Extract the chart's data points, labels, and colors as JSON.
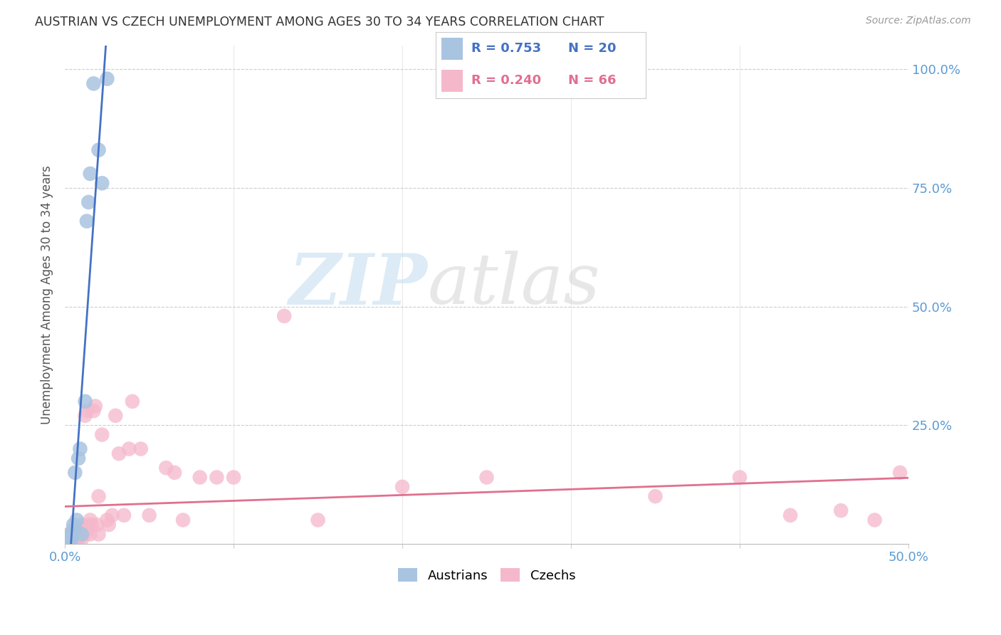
{
  "title": "AUSTRIAN VS CZECH UNEMPLOYMENT AMONG AGES 30 TO 34 YEARS CORRELATION CHART",
  "source": "Source: ZipAtlas.com",
  "ylabel": "Unemployment Among Ages 30 to 34 years",
  "xlim": [
    0.0,
    0.5
  ],
  "ylim": [
    0.0,
    1.05
  ],
  "yticks": [
    0.0,
    0.25,
    0.5,
    0.75,
    1.0
  ],
  "ytick_labels": [
    "",
    "25.0%",
    "50.0%",
    "75.0%",
    "100.0%"
  ],
  "xtick_labels": [
    "0.0%",
    "",
    "",
    "",
    "",
    "50.0%"
  ],
  "watermark_zip": "ZIP",
  "watermark_atlas": "atlas",
  "legend_blue_r": "R = 0.753",
  "legend_blue_n": "N = 20",
  "legend_pink_r": "R = 0.240",
  "legend_pink_n": "N = 66",
  "blue_color": "#a8c4e0",
  "pink_color": "#f5b8cb",
  "blue_line_color": "#4472c4",
  "pink_line_color": "#e07090",
  "label_color": "#5b9bd5",
  "austrians_x": [
    0.002,
    0.003,
    0.003,
    0.004,
    0.004,
    0.005,
    0.006,
    0.006,
    0.007,
    0.008,
    0.009,
    0.01,
    0.012,
    0.013,
    0.014,
    0.015,
    0.017,
    0.02,
    0.022,
    0.025
  ],
  "austrians_y": [
    0.01,
    0.02,
    0.01,
    0.01,
    0.02,
    0.04,
    0.03,
    0.15,
    0.05,
    0.18,
    0.2,
    0.02,
    0.3,
    0.68,
    0.72,
    0.78,
    0.97,
    0.83,
    0.76,
    0.98
  ],
  "czechs_x": [
    0.001,
    0.002,
    0.002,
    0.002,
    0.003,
    0.003,
    0.003,
    0.004,
    0.004,
    0.005,
    0.005,
    0.005,
    0.005,
    0.006,
    0.006,
    0.006,
    0.007,
    0.007,
    0.008,
    0.008,
    0.009,
    0.009,
    0.01,
    0.01,
    0.01,
    0.011,
    0.012,
    0.012,
    0.013,
    0.013,
    0.014,
    0.015,
    0.015,
    0.016,
    0.017,
    0.018,
    0.019,
    0.02,
    0.02,
    0.022,
    0.025,
    0.026,
    0.028,
    0.03,
    0.032,
    0.035,
    0.038,
    0.04,
    0.045,
    0.05,
    0.06,
    0.065,
    0.07,
    0.08,
    0.09,
    0.1,
    0.13,
    0.15,
    0.2,
    0.25,
    0.35,
    0.4,
    0.43,
    0.46,
    0.48,
    0.495
  ],
  "czechs_y": [
    0.01,
    0.01,
    0.02,
    0.01,
    0.01,
    0.02,
    0.01,
    0.01,
    0.02,
    0.01,
    0.01,
    0.02,
    0.03,
    0.01,
    0.02,
    0.02,
    0.01,
    0.02,
    0.01,
    0.02,
    0.02,
    0.03,
    0.01,
    0.02,
    0.04,
    0.03,
    0.02,
    0.27,
    0.03,
    0.28,
    0.04,
    0.02,
    0.05,
    0.04,
    0.28,
    0.29,
    0.04,
    0.02,
    0.1,
    0.23,
    0.05,
    0.04,
    0.06,
    0.27,
    0.19,
    0.06,
    0.2,
    0.3,
    0.2,
    0.06,
    0.16,
    0.15,
    0.05,
    0.14,
    0.14,
    0.14,
    0.48,
    0.05,
    0.12,
    0.14,
    0.1,
    0.14,
    0.06,
    0.07,
    0.05,
    0.15
  ],
  "blue_line_x": [
    0.0,
    0.105
  ],
  "pink_line_x": [
    0.0,
    0.5
  ]
}
